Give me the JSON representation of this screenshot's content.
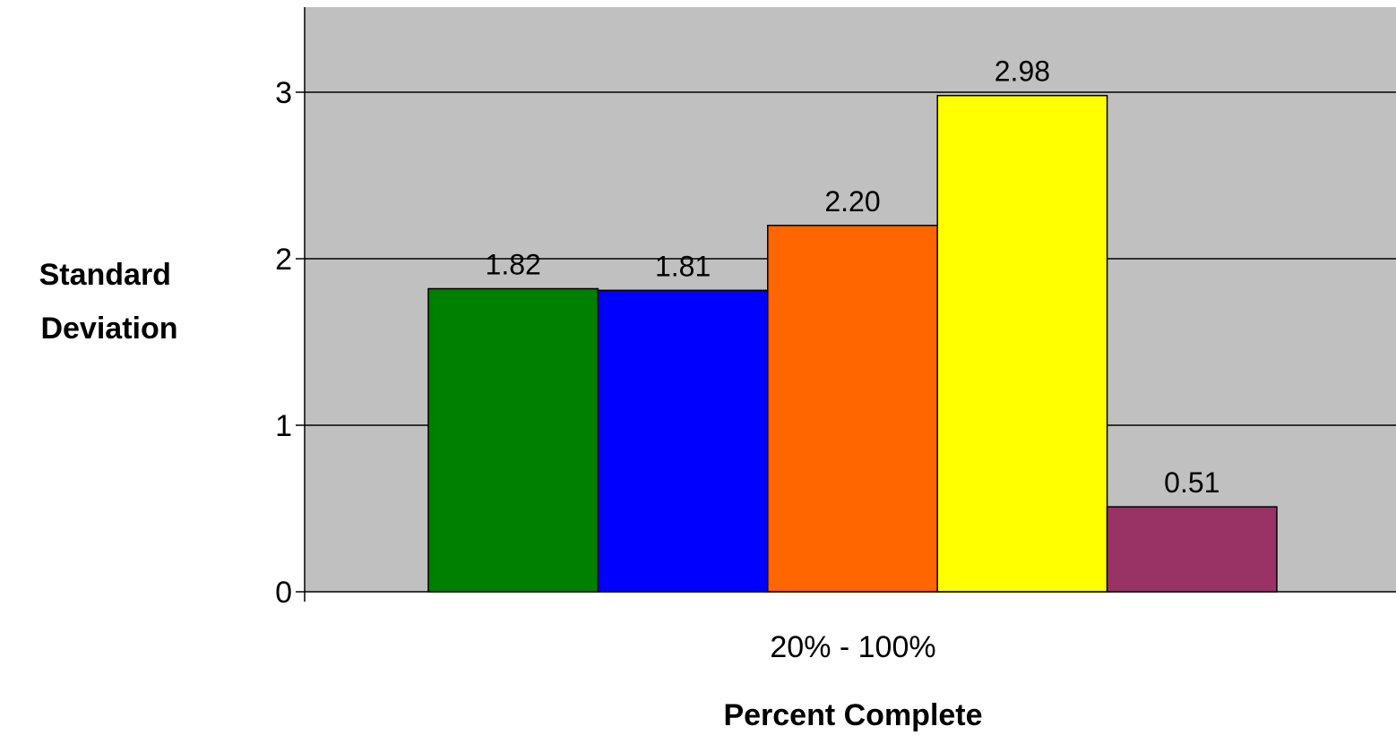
{
  "chart_data": {
    "type": "bar",
    "categories": [
      "20% - 100%"
    ],
    "series": [
      {
        "values": [
          1.82
        ],
        "label": "1.82",
        "color": "#008000"
      },
      {
        "values": [
          1.81
        ],
        "label": "1.81",
        "color": "#0000FF"
      },
      {
        "values": [
          2.2
        ],
        "label": "2.20",
        "color": "#FF6600"
      },
      {
        "values": [
          2.98
        ],
        "label": "2.98",
        "color": "#FFFF00"
      },
      {
        "values": [
          0.51
        ],
        "label": "0.51",
        "color": "#993366"
      }
    ],
    "xlabel": "Percent Complete",
    "ylabel": [
      "Standard",
      "Deviation"
    ],
    "yticks": [
      "0",
      "1",
      "2",
      "3"
    ],
    "ylim": [
      0,
      3.5
    ],
    "grid": true,
    "plot_background": "#C0C0C0"
  }
}
